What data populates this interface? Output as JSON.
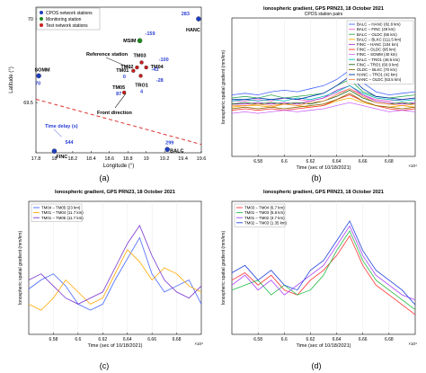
{
  "panel_labels": [
    "(a)",
    "(b)",
    "(c)",
    "(d)"
  ],
  "chart_data": [
    {
      "panel": "(a)",
      "type": "scatter",
      "title": "",
      "xlabel": "Longitude (°)",
      "ylabel": "Latitude (°)",
      "xlim": [
        17.8,
        19.6
      ],
      "ylim": [
        69.2,
        70.07
      ],
      "xticks": [
        "17.8",
        "18",
        "18.2",
        "18.4",
        "18.6",
        "18.8",
        "19",
        "19.2",
        "19.4",
        "19.6"
      ],
      "yticks": [
        "69.5",
        "70"
      ],
      "legend": [
        "CPOS network stations",
        "Monitoring station",
        "Test network stations"
      ],
      "colors": {
        "cpos": "#1f3fbf",
        "monitoring": "#1f8a1f",
        "test": "#c81e1e",
        "delay": "#2a3fd6",
        "front": "#e03030"
      },
      "stations": [
        {
          "name": "HANC",
          "lon": 19.57,
          "lat": 70.0,
          "kind": "cpos",
          "delay": "283"
        },
        {
          "name": "SOMM",
          "lon": 17.83,
          "lat": 69.66,
          "kind": "cpos",
          "delay": "70"
        },
        {
          "name": "FINC",
          "lon": 18.0,
          "lat": 69.21,
          "kind": "cpos",
          "delay": "544"
        },
        {
          "name": "BALC",
          "lon": 19.23,
          "lat": 69.22,
          "kind": "cpos",
          "delay": "299"
        },
        {
          "name": "MSIM",
          "lon": 18.93,
          "lat": 69.87,
          "kind": "monitoring",
          "delay": "-159"
        },
        {
          "name": "TM03",
          "lon": 18.95,
          "lat": 69.74,
          "kind": "test",
          "delay": ""
        },
        {
          "name": "TM04",
          "lon": 19.0,
          "lat": 69.71,
          "kind": "test",
          "delay": "-100"
        },
        {
          "name": "TM02",
          "lon": 18.9,
          "lat": 69.71,
          "kind": "test",
          "delay": "-43"
        },
        {
          "name": "TM01",
          "lon": 18.86,
          "lat": 69.69,
          "kind": "test",
          "delay": "0"
        },
        {
          "name": "TRO1",
          "lon": 18.94,
          "lat": 69.66,
          "kind": "test",
          "delay": "4"
        },
        {
          "name": "TM05",
          "lon": 18.76,
          "lat": 69.56,
          "kind": "test",
          "delay": "87"
        }
      ],
      "extra_delays": [
        {
          "lon": 19.05,
          "lat": 69.7,
          "value": "-28"
        }
      ],
      "annotations": {
        "reference": "Reference station",
        "front": "Front direction",
        "delay": "Time delay (s)"
      }
    },
    {
      "panel": "(b)",
      "type": "line",
      "title": "Ionospheric gradient, GPS PRN23, 18 October 2021",
      "subtitle": "CPOS station pairs",
      "xlabel": "Time (sec of 10/18/2021)",
      "ylabel": "Ionospheric spatial gradient (mm/km)",
      "xlim": [
        6.56,
        6.7
      ],
      "ylim": [
        0,
        90
      ],
      "xticks": [
        "6.58",
        "6.6",
        "6.62",
        "6.64",
        "6.66",
        "6.68"
      ],
      "exponent": "×10⁴",
      "series": [
        {
          "name": "BALC – HANC (82.8 km)",
          "color": "#4466ff",
          "values": [
            40,
            41,
            40,
            42,
            43,
            42,
            44,
            46,
            50,
            56,
            48,
            42,
            40,
            41,
            42
          ]
        },
        {
          "name": "BALC – FINC (49 km)",
          "color": "#ff66cc",
          "values": [
            36,
            36,
            37,
            36,
            38,
            37,
            36,
            38,
            41,
            44,
            40,
            37,
            36,
            37,
            38
          ]
        },
        {
          "name": "BALC – OLDC (55 km)",
          "color": "#33aa55",
          "values": [
            38,
            39,
            38,
            40,
            38,
            39,
            40,
            41,
            46,
            50,
            42,
            39,
            38,
            39,
            40
          ]
        },
        {
          "name": "BALC – BLKC (111.5 km)",
          "color": "#ffaa00",
          "values": [
            32,
            33,
            33,
            32,
            34,
            33,
            32,
            33,
            36,
            38,
            35,
            33,
            32,
            33,
            32
          ]
        },
        {
          "name": "FINC – HANC (104 km)",
          "color": "#aa33cc",
          "values": [
            34,
            34,
            35,
            34,
            35,
            34,
            36,
            38,
            43,
            46,
            40,
            36,
            35,
            34,
            35
          ]
        },
        {
          "name": "FINC – OLDC (95 km)",
          "color": "#ff3333",
          "values": [
            30,
            31,
            30,
            31,
            30,
            31,
            32,
            33,
            37,
            40,
            36,
            33,
            31,
            30,
            31
          ]
        },
        {
          "name": "FINC – SOMM (40 km)",
          "color": "#cc66ff",
          "values": [
            28,
            29,
            28,
            29,
            30,
            29,
            30,
            31,
            33,
            35,
            33,
            31,
            29,
            30,
            29
          ]
        },
        {
          "name": "BALC – TRO1 (48.5 km)",
          "color": "#00bbbb",
          "values": [
            36,
            37,
            36,
            37,
            36,
            38,
            37,
            39,
            42,
            46,
            41,
            38,
            37,
            36,
            37
          ]
        },
        {
          "name": "FINC – TRO1 (60.9 km)",
          "color": "#226622",
          "values": [
            34,
            35,
            34,
            35,
            34,
            35,
            34,
            36,
            39,
            43,
            38,
            35,
            34,
            35,
            34
          ]
        },
        {
          "name": "OLDC – BLKC (70 km)",
          "color": "#886600",
          "values": [
            31,
            32,
            31,
            32,
            31,
            32,
            33,
            34,
            37,
            41,
            36,
            33,
            32,
            31,
            32
          ]
        },
        {
          "name": "HANC – TRO1 (42 km)",
          "color": "#0033aa",
          "values": [
            37,
            37,
            38,
            37,
            38,
            37,
            39,
            41,
            46,
            52,
            44,
            39,
            38,
            37,
            38
          ]
        },
        {
          "name": "HANC – OLDC (53.5 km)",
          "color": "#ff8844",
          "values": [
            33,
            33,
            34,
            33,
            34,
            33,
            35,
            36,
            40,
            44,
            39,
            35,
            34,
            33,
            34
          ]
        }
      ]
    },
    {
      "panel": "(c)",
      "type": "line",
      "title": "Ionospheric gradient, GPS PRN23, 18 October 2021",
      "xlabel": "Time (sec of 10/18/2021)",
      "ylabel": "Ionospheric spatial gradient (mm/km)",
      "xlim": [
        6.56,
        6.7
      ],
      "xticks": [
        "6.58",
        "6.6",
        "6.62",
        "6.64",
        "6.66",
        "6.68"
      ],
      "exponent": "×10⁴",
      "series": [
        {
          "name": "TM04 – TM05 (23 km)",
          "color": "#4466ff",
          "values": [
            45,
            48,
            50,
            46,
            40,
            38,
            40,
            48,
            55,
            62,
            50,
            44,
            46,
            48,
            40
          ]
        },
        {
          "name": "TM01 – TM04 (11.7 km)",
          "color": "#ffaa00",
          "values": [
            40,
            38,
            42,
            48,
            44,
            40,
            42,
            50,
            58,
            54,
            48,
            52,
            50,
            46,
            44
          ]
        },
        {
          "name": "TM01 – TM05 (11.7 km)",
          "color": "#7733cc",
          "values": [
            48,
            50,
            46,
            42,
            40,
            42,
            44,
            52,
            60,
            66,
            56,
            48,
            44,
            42,
            46
          ]
        }
      ]
    },
    {
      "panel": "(d)",
      "type": "line",
      "title": "Ionospheric gradient, GPS PRN23, 18 October 2021",
      "xlabel": "Time (sec of 10/18/2021)",
      "ylabel": "Ionospheric spatial gradient (mm/km)",
      "xlim": [
        6.56,
        6.7
      ],
      "xticks": [
        "6.58",
        "6.6",
        "6.62",
        "6.64",
        "6.66",
        "6.68"
      ],
      "exponent": "×10⁴",
      "series": [
        {
          "name": "TM03 – TM04 (6.7 km)",
          "color": "#ff3333",
          "values": [
            52,
            55,
            50,
            54,
            48,
            46,
            52,
            56,
            62,
            70,
            58,
            50,
            46,
            42,
            38
          ]
        },
        {
          "name": "TM01 – TM03 (5.8 km)",
          "color": "#22bb44",
          "values": [
            48,
            50,
            52,
            46,
            50,
            46,
            48,
            54,
            64,
            72,
            60,
            52,
            48,
            44,
            40
          ]
        },
        {
          "name": "TM01 – TM02 (3.7 km)",
          "color": "#aa44ff",
          "values": [
            50,
            54,
            48,
            52,
            46,
            50,
            54,
            58,
            66,
            74,
            62,
            54,
            50,
            46,
            44
          ]
        },
        {
          "name": "TM02 – TM03 (1.35 km)",
          "color": "#2244dd",
          "values": [
            55,
            58,
            52,
            56,
            50,
            48,
            56,
            60,
            68,
            76,
            64,
            56,
            52,
            48,
            42
          ]
        }
      ]
    }
  ]
}
